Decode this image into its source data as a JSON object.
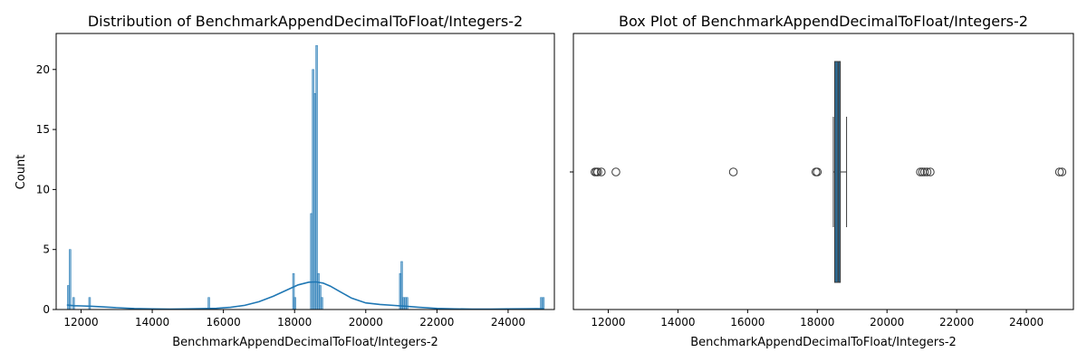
{
  "colors": {
    "primary": "#1f77b4",
    "bar": "#1f77b4",
    "box": "#2f6a91",
    "outline": "#3a3a3a"
  },
  "chart_data": [
    {
      "type": "histogram",
      "title": "Distribution of BenchmarkAppendDecimalToFloat/Integers-2",
      "xlabel": "BenchmarkAppendDecimalToFloat/Integers-2",
      "ylabel": "Count",
      "xlim": [
        11300,
        25300
      ],
      "ylim": [
        0,
        23
      ],
      "xticks": [
        12000,
        14000,
        16000,
        18000,
        20000,
        22000,
        24000
      ],
      "yticks": [
        0,
        5,
        10,
        15,
        20
      ],
      "grid": false,
      "kde": true,
      "bins": [
        {
          "x": 11640,
          "count": 2
        },
        {
          "x": 11690,
          "count": 5
        },
        {
          "x": 11790,
          "count": 1
        },
        {
          "x": 12240,
          "count": 1
        },
        {
          "x": 15590,
          "count": 1
        },
        {
          "x": 17970,
          "count": 3
        },
        {
          "x": 18010,
          "count": 1
        },
        {
          "x": 18470,
          "count": 8
        },
        {
          "x": 18520,
          "count": 20
        },
        {
          "x": 18570,
          "count": 18
        },
        {
          "x": 18620,
          "count": 22
        },
        {
          "x": 18670,
          "count": 3
        },
        {
          "x": 18720,
          "count": 2
        },
        {
          "x": 18770,
          "count": 1
        },
        {
          "x": 20970,
          "count": 3
        },
        {
          "x": 21010,
          "count": 4
        },
        {
          "x": 21060,
          "count": 1
        },
        {
          "x": 21110,
          "count": 1
        },
        {
          "x": 21160,
          "count": 1
        },
        {
          "x": 24930,
          "count": 1
        },
        {
          "x": 24990,
          "count": 1
        }
      ],
      "kde_curve": {
        "x": [
          11600,
          11800,
          12000,
          12300,
          12600,
          13000,
          13500,
          14000,
          14500,
          15000,
          15500,
          15800,
          16200,
          16600,
          17000,
          17400,
          17800,
          18100,
          18400,
          18600,
          18800,
          19000,
          19300,
          19600,
          20000,
          20400,
          20800,
          21100,
          21500,
          22000,
          22500,
          23000,
          23500,
          24000,
          24500,
          24800,
          25000
        ],
        "y": [
          0.38,
          0.32,
          0.3,
          0.27,
          0.22,
          0.15,
          0.08,
          0.05,
          0.04,
          0.05,
          0.08,
          0.1,
          0.18,
          0.35,
          0.65,
          1.1,
          1.65,
          2.05,
          2.28,
          2.3,
          2.2,
          1.95,
          1.45,
          0.95,
          0.55,
          0.42,
          0.34,
          0.28,
          0.18,
          0.09,
          0.05,
          0.04,
          0.04,
          0.05,
          0.06,
          0.07,
          0.06
        ]
      }
    },
    {
      "type": "box",
      "title": "Box Plot of BenchmarkAppendDecimalToFloat/Integers-2",
      "xlabel": "BenchmarkAppendDecimalToFloat/Integers-2",
      "xlim": [
        11000,
        25350
      ],
      "xticks": [
        12000,
        14000,
        16000,
        18000,
        20000,
        22000,
        24000
      ],
      "q1": 18500,
      "median": 18600,
      "q3": 18660,
      "whisker_low": 18460,
      "whisker_high": 18840,
      "outliers": [
        11620,
        11660,
        11700,
        11800,
        12220,
        15590,
        17960,
        18000,
        20960,
        21020,
        21080,
        21150,
        21240,
        24950,
        25020
      ]
    }
  ]
}
